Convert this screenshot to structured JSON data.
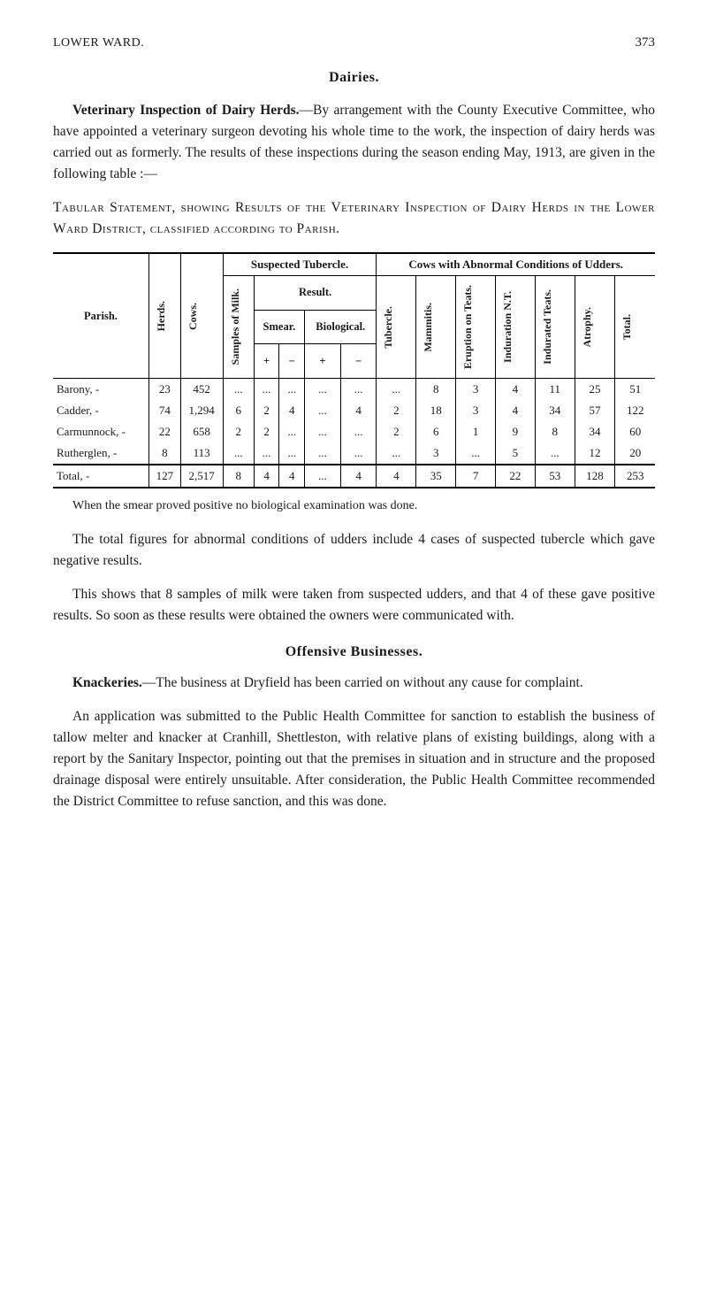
{
  "page": {
    "running_head": "LOWER WARD.",
    "page_number": "373"
  },
  "dairies": {
    "title": "Dairies.",
    "para_lead": "Veterinary Inspection of Dairy Herds.",
    "para_rest": "—By arrangement with the County Executive Committee, who have appointed a veterinary surgeon devoting his whole time to the work, the inspection of dairy herds was carried out as formerly. The results of these inspections during the season ending May, 1913, are given in the following table :—",
    "tabular_title": "Tabular Statement, showing Results of the Veterinary Inspection of Dairy Herds in the Lower Ward District, classified according to Parish."
  },
  "table": {
    "headers": {
      "parish": "Parish.",
      "herds": "Herds.",
      "cows": "Cows.",
      "samples_milk": "Samples of Milk.",
      "suspected": "Suspected Tubercle.",
      "result": "Result.",
      "smear": "Smear.",
      "biological": "Biological.",
      "plus": "+",
      "minus": "−",
      "abnormal": "Cows with Abnormal Conditions of Udders.",
      "tubercle": "Tubercle.",
      "mammitis": "Mammitis.",
      "eruption": "Eruption on Teats.",
      "induration": "Induration N.T.",
      "indurated": "Indurated Teats.",
      "atrophy": "Atrophy.",
      "total": "Total."
    },
    "rows": [
      {
        "parish": "Barony, -",
        "herds": "23",
        "cows": "452",
        "samples": "...",
        "smear_p": "...",
        "smear_m": "...",
        "bio_p": "...",
        "bio_m": "...",
        "tubercle": "...",
        "mammitis": "8",
        "eruption": "3",
        "induration": "4",
        "indurated": "11",
        "atrophy": "25",
        "total": "51"
      },
      {
        "parish": "Cadder, -",
        "herds": "74",
        "cows": "1,294",
        "samples": "6",
        "smear_p": "2",
        "smear_m": "4",
        "bio_p": "...",
        "bio_m": "4",
        "tubercle": "2",
        "mammitis": "18",
        "eruption": "3",
        "induration": "4",
        "indurated": "34",
        "atrophy": "57",
        "total": "122"
      },
      {
        "parish": "Carmunnock, -",
        "herds": "22",
        "cows": "658",
        "samples": "2",
        "smear_p": "2",
        "smear_m": "...",
        "bio_p": "...",
        "bio_m": "...",
        "tubercle": "2",
        "mammitis": "6",
        "eruption": "1",
        "induration": "9",
        "indurated": "8",
        "atrophy": "34",
        "total": "60"
      },
      {
        "parish": "Rutherglen, -",
        "herds": "8",
        "cows": "113",
        "samples": "...",
        "smear_p": "...",
        "smear_m": "...",
        "bio_p": "...",
        "bio_m": "...",
        "tubercle": "...",
        "mammitis": "3",
        "eruption": "...",
        "induration": "5",
        "indurated": "...",
        "atrophy": "12",
        "total": "20"
      }
    ],
    "total_row": {
      "parish": "Total, -",
      "herds": "127",
      "cows": "2,517",
      "samples": "8",
      "smear_p": "4",
      "smear_m": "4",
      "bio_p": "...",
      "bio_m": "4",
      "tubercle": "4",
      "mammitis": "35",
      "eruption": "7",
      "induration": "22",
      "indurated": "53",
      "atrophy": "128",
      "total": "253"
    },
    "caption": "When the smear proved positive no biological examination was done."
  },
  "after_table": {
    "p1": "The total figures for abnormal conditions of udders include 4 cases of suspected tubercle which gave negative results.",
    "p2": "This shows that 8 samples of milk were taken from suspected udders, and that 4 of these gave positive results. So soon as these results were obtained the owners were communicated with."
  },
  "offensive": {
    "title": "Offensive Businesses.",
    "p1_lead": "Knackeries.",
    "p1_rest": "—The business at Dryfield has been carried on without any cause for complaint.",
    "p2": "An application was submitted to the Public Health Committee for sanction to establish the business of tallow melter and knacker at Cranhill, Shettleston, with relative plans of existing buildings, along with a report by the Sanitary Inspector, pointing out that the premises in situation and in structure and the proposed drainage disposal were entirely unsuitable. After consideration, the Public Health Committee recommended the District Committee to refuse sanction, and this was done."
  }
}
